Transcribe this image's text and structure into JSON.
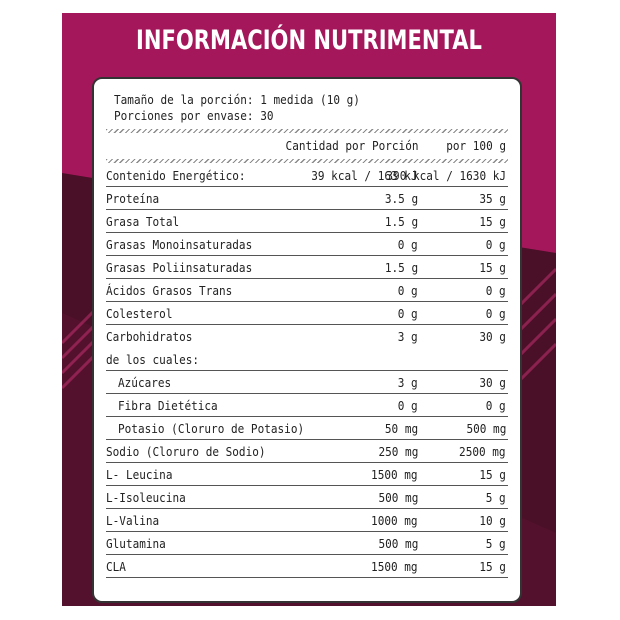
{
  "title": "INFORMACIÓN NUTRIMENTAL",
  "serving": {
    "size": "Tamaño de la porción: 1 medida (10 g)",
    "per_container": "Porciones por envase: 30"
  },
  "headers": {
    "per_serving": "Cantidad por Porción",
    "per_100": "por 100 g"
  },
  "rows": [
    {
      "label": "Contenido Energético:",
      "per_serving": "39 kcal / 163 kJ",
      "per_100": "390 kcal / 1630 kJ"
    },
    {
      "label": "Proteína",
      "per_serving": "3.5 g",
      "per_100": "35 g"
    },
    {
      "label": "Grasa Total",
      "per_serving": "1.5 g",
      "per_100": "15 g"
    },
    {
      "label": "Grasas Monoinsaturadas",
      "per_serving": "0 g",
      "per_100": "0 g"
    },
    {
      "label": "Grasas Poliinsaturadas",
      "per_serving": "1.5 g",
      "per_100": "15 g"
    },
    {
      "label": "Ácidos Grasos Trans",
      "per_serving": "0 g",
      "per_100": "0 g"
    },
    {
      "label": "Colesterol",
      "per_serving": "0 g",
      "per_100": "0 g"
    },
    {
      "label": "Carbohidratos",
      "per_serving": "3 g",
      "per_100": "30 g"
    },
    {
      "label": "de los cuales:",
      "per_serving": "",
      "per_100": ""
    },
    {
      "label": "Azúcares",
      "per_serving": "3 g",
      "per_100": "30 g"
    },
    {
      "label": "Fibra Dietética",
      "per_serving": "0 g",
      "per_100": "0 g"
    },
    {
      "label": "Potasio (Cloruro de Potasio)",
      "per_serving": "50 mg",
      "per_100": "500 mg"
    },
    {
      "label": "Sodio (Cloruro de Sodio)",
      "per_serving": "250 mg",
      "per_100": "2500 mg"
    },
    {
      "label": "L- Leucina",
      "per_serving": "1500 mg",
      "per_100": "15 g"
    },
    {
      "label": "L-Isoleucina",
      "per_serving": "500 mg",
      "per_100": "5 g"
    },
    {
      "label": "L-Valina",
      "per_serving": "1000 mg",
      "per_100": "10 g"
    },
    {
      "label": "Glutamina",
      "per_serving": "500 mg",
      "per_100": "5 g"
    },
    {
      "label": "CLA",
      "per_serving": "1500 mg",
      "per_100": "15 g"
    }
  ],
  "colors": {
    "panel": "#a5175b",
    "panel_dark": "#4a1027",
    "card": "#ffffff",
    "text": "#222222"
  }
}
